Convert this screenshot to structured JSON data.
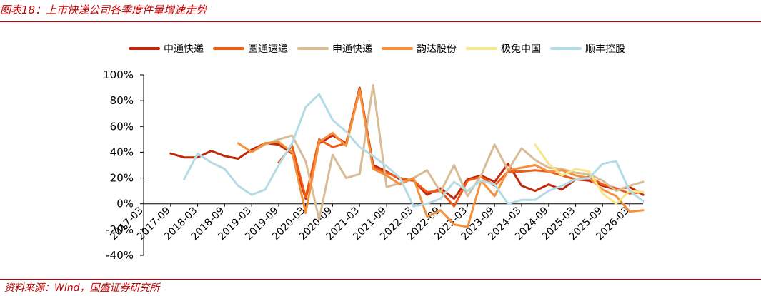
{
  "header": {
    "title": "图表18：上市快递公司各季度件量增速走势"
  },
  "footer": {
    "source": "资料来源：Wind，国盛证券研究所"
  },
  "chart_data": {
    "type": "line",
    "x": [
      "2017-03",
      "2017-06",
      "2017-09",
      "2017-12",
      "2018-03",
      "2018-06",
      "2018-09",
      "2018-12",
      "2019-03",
      "2019-06",
      "2019-09",
      "2019-12",
      "2020-03",
      "2020-06",
      "2020-09",
      "2020-12",
      "2021-03",
      "2021-06",
      "2021-09",
      "2021-12",
      "2022-03",
      "2022-06",
      "2022-09",
      "2022-12",
      "2023-03",
      "2023-06",
      "2023-09",
      "2023-12",
      "2024-03",
      "2024-06",
      "2024-09",
      "2024-12",
      "2025-03",
      "2025-06",
      "2025-09",
      "2025-12",
      "2026-03",
      "2026-06"
    ],
    "xtick_labels": [
      "2017-03",
      "2017-09",
      "2018-03",
      "2018-09",
      "2019-03",
      "2019-09",
      "2020-03",
      "2020-09",
      "2021-03",
      "2021-09",
      "2022-03",
      "2022-09",
      "2023-03",
      "2023-09",
      "2024-03",
      "2024-09",
      "2025-03",
      "2025-09",
      "2026-03"
    ],
    "ytick_labels": [
      "100%",
      "80%",
      "60%",
      "40%",
      "20%",
      "0%",
      "-20%",
      "-40%"
    ],
    "ylim": [
      -0.4,
      1.0
    ],
    "ystep": 0.2,
    "grid": false,
    "legend_position": "top",
    "series": [
      {
        "name": "中通快递",
        "color": "#c0280c",
        "width": 3,
        "values": [
          null,
          null,
          0.39,
          0.36,
          0.36,
          0.41,
          0.37,
          0.35,
          0.42,
          0.47,
          0.46,
          0.39,
          0.04,
          0.47,
          0.53,
          0.47,
          0.9,
          0.3,
          0.25,
          0.19,
          0.18,
          0.07,
          0.12,
          0.04,
          0.19,
          0.22,
          0.17,
          0.31,
          0.14,
          0.1,
          0.15,
          0.11,
          0.19,
          0.18,
          0.14,
          0.11,
          0.13,
          0.07
        ]
      },
      {
        "name": "圆通速递",
        "color": "#f05a14",
        "width": 3,
        "values": [
          null,
          null,
          null,
          null,
          null,
          null,
          null,
          null,
          null,
          null,
          0.32,
          0.45,
          0.05,
          0.5,
          0.44,
          0.47,
          0.89,
          0.28,
          0.24,
          0.2,
          0.18,
          0.09,
          0.1,
          -0.02,
          0.18,
          0.21,
          0.14,
          0.25,
          0.25,
          0.26,
          0.25,
          0.22,
          0.19,
          0.21,
          0.15,
          0.12,
          0.08,
          0.09
        ]
      },
      {
        "name": "申通快递",
        "color": "#d8bc96",
        "width": 3,
        "values": [
          null,
          null,
          null,
          null,
          null,
          null,
          null,
          null,
          0.4,
          0.46,
          0.5,
          0.53,
          0.33,
          -0.12,
          0.38,
          0.2,
          0.23,
          0.92,
          0.13,
          0.16,
          0.2,
          0.26,
          0.09,
          0.3,
          0.06,
          0.22,
          0.46,
          0.26,
          0.43,
          0.34,
          0.28,
          0.27,
          0.24,
          0.23,
          0.18,
          0.1,
          0.14,
          0.17
        ]
      },
      {
        "name": "韵达股份",
        "color": "#f5913c",
        "width": 3,
        "values": [
          null,
          null,
          null,
          null,
          null,
          null,
          null,
          0.47,
          0.4,
          0.47,
          0.48,
          0.4,
          -0.07,
          0.48,
          0.55,
          0.45,
          0.88,
          0.27,
          0.22,
          0.15,
          0.2,
          -0.1,
          -0.05,
          -0.16,
          -0.18,
          0.18,
          0.06,
          0.26,
          0.28,
          0.3,
          0.25,
          0.26,
          0.22,
          0.2,
          0.11,
          0.06,
          -0.06,
          -0.05
        ]
      },
      {
        "name": "极兔中国",
        "color": "#f8e68c",
        "width": 3,
        "values": [
          null,
          null,
          null,
          null,
          null,
          null,
          null,
          null,
          null,
          null,
          null,
          null,
          null,
          null,
          null,
          null,
          null,
          null,
          null,
          null,
          null,
          null,
          null,
          null,
          null,
          null,
          null,
          null,
          null,
          0.46,
          0.31,
          0.22,
          0.27,
          0.25,
          0.08,
          0.0,
          0.1,
          0.09
        ]
      },
      {
        "name": "顺丰控股",
        "color": "#b4dce6",
        "width": 3,
        "values": [
          null,
          null,
          null,
          0.19,
          0.39,
          0.32,
          0.27,
          0.14,
          0.07,
          0.11,
          0.3,
          0.47,
          0.75,
          0.85,
          0.65,
          0.56,
          0.44,
          0.37,
          0.29,
          0.2,
          -0.02,
          0.0,
          0.04,
          0.17,
          0.1,
          0.18,
          0.15,
          0.0,
          0.03,
          0.03,
          0.1,
          0.14,
          0.19,
          0.2,
          0.31,
          0.33,
          0.1,
          0.02
        ]
      }
    ]
  }
}
